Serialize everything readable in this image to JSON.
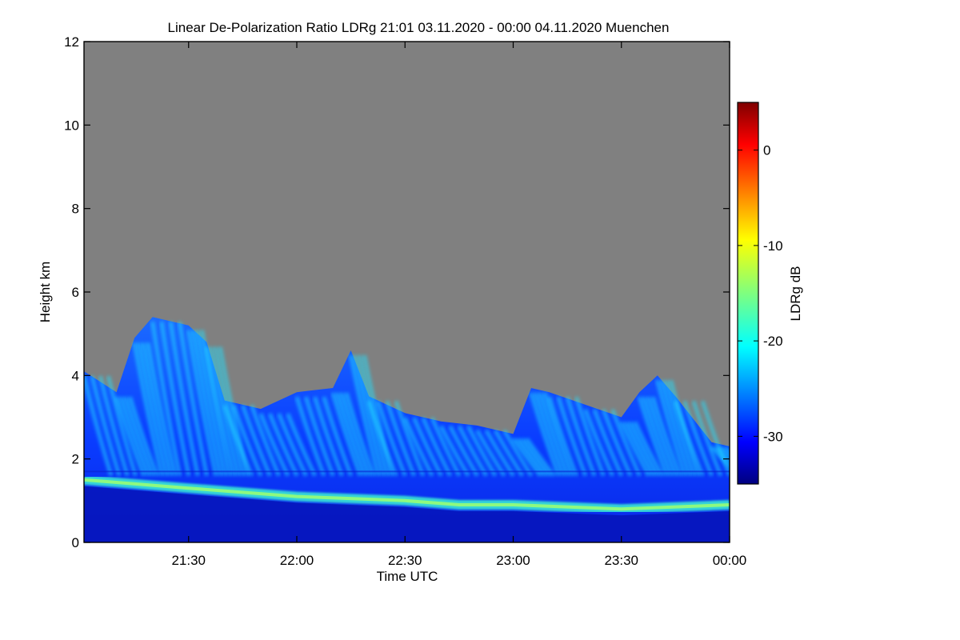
{
  "chart_data": {
    "type": "heatmap",
    "title": "Linear De-Polarization Ratio LDRg   21:01 03.11.2020 - 00:00 04.11.2020 Muenchen",
    "xlabel": "Time UTC",
    "ylabel": "Height km",
    "x_ticks": [
      "21:30",
      "22:00",
      "22:30",
      "23:00",
      "23:30",
      "00:00"
    ],
    "x_range": [
      "21:01",
      "00:00"
    ],
    "y_ticks": [
      0,
      2,
      4,
      6,
      8,
      10,
      12
    ],
    "ylim": [
      0,
      12
    ],
    "colorbar": {
      "label": "LDRg dB",
      "ticks": [
        0,
        -10,
        -20,
        -30
      ],
      "range": [
        -35,
        5
      ]
    },
    "background_color": "#808080",
    "cloud_top_km": [
      {
        "time": "21:01",
        "top": 4.1
      },
      {
        "time": "21:10",
        "top": 3.6
      },
      {
        "time": "21:15",
        "top": 4.9
      },
      {
        "time": "21:20",
        "top": 5.4
      },
      {
        "time": "21:30",
        "top": 5.2
      },
      {
        "time": "21:35",
        "top": 4.8
      },
      {
        "time": "21:40",
        "top": 3.4
      },
      {
        "time": "21:50",
        "top": 3.2
      },
      {
        "time": "22:00",
        "top": 3.6
      },
      {
        "time": "22:10",
        "top": 3.7
      },
      {
        "time": "22:15",
        "top": 4.6
      },
      {
        "time": "22:20",
        "top": 3.5
      },
      {
        "time": "22:30",
        "top": 3.1
      },
      {
        "time": "22:40",
        "top": 2.9
      },
      {
        "time": "22:50",
        "top": 2.8
      },
      {
        "time": "23:00",
        "top": 2.6
      },
      {
        "time": "23:05",
        "top": 3.7
      },
      {
        "time": "23:10",
        "top": 3.6
      },
      {
        "time": "23:20",
        "top": 3.3
      },
      {
        "time": "23:30",
        "top": 3.0
      },
      {
        "time": "23:35",
        "top": 3.6
      },
      {
        "time": "23:40",
        "top": 4.0
      },
      {
        "time": "23:45",
        "top": 3.5
      },
      {
        "time": "23:55",
        "top": 2.4
      },
      {
        "time": "00:00",
        "top": 2.3
      }
    ],
    "melting_layer_km": [
      {
        "time": "21:01",
        "height": 1.5
      },
      {
        "time": "21:30",
        "height": 1.3
      },
      {
        "time": "22:00",
        "height": 1.1
      },
      {
        "time": "22:30",
        "height": 1.0
      },
      {
        "time": "22:45",
        "height": 0.9
      },
      {
        "time": "23:00",
        "height": 0.9
      },
      {
        "time": "23:30",
        "height": 0.8
      },
      {
        "time": "00:00",
        "height": 0.9
      }
    ]
  }
}
